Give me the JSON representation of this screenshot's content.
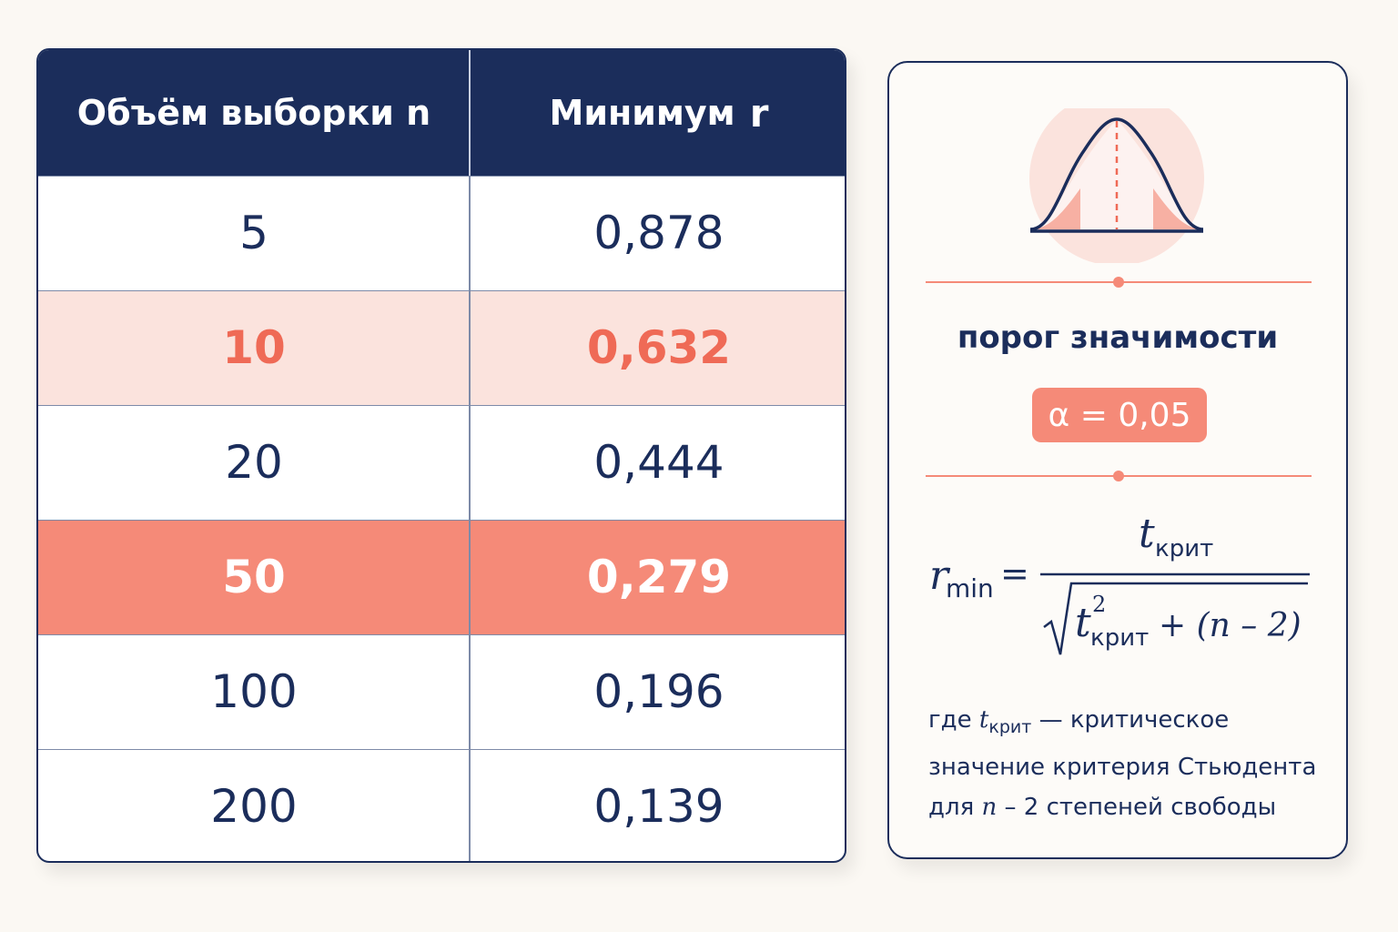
{
  "table": {
    "header": {
      "col_n": "Объём выборки n",
      "col_r_prefix": "Минимум",
      "col_r_letter": "r"
    },
    "rows": [
      {
        "n": "5",
        "r": "0,878",
        "highlight": "none"
      },
      {
        "n": "10",
        "r": "0,632",
        "highlight": "soft"
      },
      {
        "n": "20",
        "r": "0,444",
        "highlight": "none"
      },
      {
        "n": "50",
        "r": "0,279",
        "highlight": "strong"
      },
      {
        "n": "100",
        "r": "0,196",
        "highlight": "none"
      },
      {
        "n": "200",
        "r": "0,139",
        "highlight": "none"
      }
    ]
  },
  "side": {
    "icon": "bell-curve-icon",
    "threshold_label": "порог значимости",
    "alpha": "α = 0,05",
    "formula": {
      "lhs_r": "r",
      "lhs_sub": "min",
      "eq": "=",
      "t": "t",
      "t_sub": "крит",
      "sup": "2",
      "tail": "+ (n – 2)"
    },
    "note": {
      "line1_prefix": "где",
      "t": "t",
      "t_sub": "крит",
      "line1_suffix": "— критическое",
      "line2": "значение критерия Стьюдента",
      "line3_prefix": "для",
      "n": "n",
      "line3_suffix": "– 2 степеней свободы"
    }
  },
  "colors": {
    "navy": "#1b2d5b",
    "coral": "#f58a78",
    "coral_text": "#ef6a56",
    "soft_pink": "#fbe3dd",
    "background": "#fbf8f3"
  }
}
